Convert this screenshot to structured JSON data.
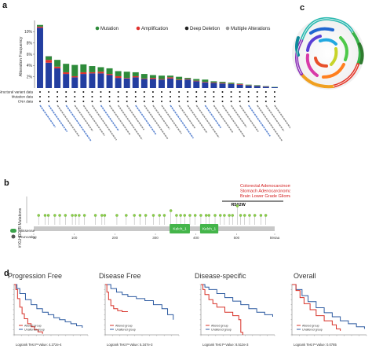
{
  "panels": {
    "a": "a",
    "b": "b",
    "c": "c",
    "d": "d"
  },
  "colors": {
    "mutation": "#2e8b3a",
    "amplification": "#e0332f",
    "deep_deletion": "#233ea0",
    "multiple": "#9a9a9a",
    "lollipop": "#8ccf4a",
    "domain": "#44b54a",
    "km_altered": "#d73027",
    "km_unaltered": "#2c5aa0",
    "label_red": "#d42020",
    "cancer_blue": "#3a6cc8"
  },
  "chart_data": [
    {
      "type": "bar",
      "panel": "a",
      "ylabel": "Alteration Frequency",
      "ylim": [
        0,
        12
      ],
      "yticks": [
        "2%",
        "4%",
        "6%",
        "8%",
        "10%"
      ],
      "legend": [
        "Mutation",
        "Amplification",
        "Deep Deletion",
        "Multiple Alterations"
      ],
      "row_labels": [
        "Structural variant data",
        "Mutation data",
        "CNA data"
      ],
      "series": [
        {
          "name": "Mutation",
          "values": [
            0.3,
            0.6,
            1.2,
            1.5,
            2.0,
            1.4,
            1.1,
            0.8,
            1.0,
            0.9,
            1.1,
            0.7,
            0.8,
            0.5,
            0.6,
            0.3,
            0.5,
            0.2,
            0.3,
            0.4,
            0.2,
            0.2,
            0.2,
            0.1,
            0.1,
            0.1,
            0.05,
            0.05
          ]
        },
        {
          "name": "Amplification",
          "values": [
            0.2,
            0.5,
            0.3,
            0.3,
            0.2,
            0.3,
            0.2,
            0.3,
            0.2,
            0.3,
            0.1,
            0.2,
            0.1,
            0.2,
            0.1,
            0.2,
            0.1,
            0.1,
            0.1,
            0.1,
            0.1,
            0.1,
            0.05,
            0.1,
            0.05,
            0.05,
            0.05,
            0.0
          ]
        },
        {
          "name": "Deep Deletion",
          "values": [
            10.7,
            4.5,
            3.5,
            2.5,
            1.9,
            2.5,
            2.6,
            2.6,
            2.3,
            1.8,
            1.7,
            1.9,
            1.6,
            1.6,
            1.5,
            1.7,
            1.4,
            1.5,
            1.2,
            1.0,
            0.9,
            0.8,
            0.7,
            0.6,
            0.45,
            0.35,
            0.25,
            0.15
          ]
        },
        {
          "name": "Multiple Alterations",
          "values": [
            0,
            0.1,
            0,
            0,
            0,
            0,
            0,
            0,
            0,
            0,
            0,
            0,
            0,
            0,
            0,
            0,
            0,
            0,
            0,
            0,
            0,
            0,
            0,
            0,
            0,
            0,
            0,
            0
          ]
        }
      ]
    },
    {
      "type": "scatter",
      "panel": "b",
      "ylabel": "# KLHDC7B Mutations",
      "xtick_labels": [
        "0",
        "100",
        "200",
        "300",
        "400",
        "500",
        "594aa"
      ],
      "xlim": [
        0,
        594
      ],
      "domains": [
        {
          "name": "Kelch_1",
          "start": 335,
          "end": 385
        },
        {
          "name": "Kelch_1",
          "start": 410,
          "end": 455
        }
      ],
      "legend": [
        "Missense",
        "Truncating"
      ],
      "annotation_lines": [
        "Colorectal Adenocarcinoma(n=1)",
        "Stomach Adenocarcinoma(n=1)",
        "Brain Lower Grade Glioma(n=1)"
      ],
      "hotspot_label": "R502W",
      "hotspot": 502,
      "mutation_positions": [
        12,
        28,
        36,
        52,
        64,
        78,
        95,
        103,
        112,
        125,
        152,
        168,
        175,
        205,
        228,
        248,
        262,
        276,
        295,
        310,
        322,
        338,
        352,
        362,
        372,
        385,
        398,
        412,
        425,
        432,
        447,
        460,
        470,
        482,
        490,
        502,
        510,
        520,
        532,
        545,
        560,
        572
      ],
      "mutation_heights": [
        1,
        1,
        1,
        1,
        1,
        1,
        1,
        1,
        1,
        1,
        1,
        1,
        1,
        1,
        1,
        1,
        1,
        1,
        1,
        1,
        1,
        2,
        1,
        1,
        1,
        1,
        1,
        1,
        1,
        1,
        1,
        1,
        1,
        1,
        1,
        3,
        1,
        1,
        1,
        1,
        1,
        1
      ]
    },
    {
      "type": "line",
      "panel": "d",
      "title": "Progression Free",
      "legend": [
        "Altered group",
        "Unaltered group"
      ],
      "logrank": "Logrank Test P-Value: 4.272e-4",
      "series": [
        {
          "name": "Altered group",
          "values": [
            [
              0,
              100
            ],
            [
              3,
              90
            ],
            [
              6,
              72
            ],
            [
              10,
              55
            ],
            [
              14,
              42
            ],
            [
              18,
              32
            ],
            [
              24,
              22
            ],
            [
              30,
              16
            ],
            [
              36,
              10
            ],
            [
              42,
              6
            ],
            [
              50,
              2
            ]
          ]
        },
        {
          "name": "Unaltered group",
          "values": [
            [
              0,
              100
            ],
            [
              5,
              92
            ],
            [
              10,
              82
            ],
            [
              20,
              70
            ],
            [
              30,
              60
            ],
            [
              40,
              52
            ],
            [
              50,
              45
            ],
            [
              60,
              40
            ],
            [
              70,
              34
            ],
            [
              80,
              30
            ],
            [
              90,
              26
            ],
            [
              100,
              22
            ],
            [
              110,
              18
            ],
            [
              120,
              14
            ]
          ]
        }
      ]
    },
    {
      "type": "line",
      "panel": "d",
      "title": "Disease Free",
      "legend": [
        "Altered group",
        "Unaltered group"
      ],
      "logrank": "Logrank Test P-Value: 5.347e-3",
      "series": [
        {
          "name": "Altered group",
          "values": [
            [
              0,
              100
            ],
            [
              3,
              85
            ],
            [
              6,
              70
            ],
            [
              10,
              58
            ],
            [
              15,
              52
            ],
            [
              22,
              48
            ],
            [
              30,
              46
            ],
            [
              40,
              46
            ]
          ]
        },
        {
          "name": "Unaltered group",
          "values": [
            [
              0,
              100
            ],
            [
              10,
              92
            ],
            [
              20,
              85
            ],
            [
              30,
              80
            ],
            [
              40,
              76
            ],
            [
              55,
              72
            ],
            [
              70,
              68
            ],
            [
              85,
              60
            ],
            [
              100,
              52
            ],
            [
              110,
              40
            ],
            [
              120,
              30
            ]
          ]
        }
      ]
    },
    {
      "type": "line",
      "panel": "d",
      "title": "Disease-specific",
      "legend": [
        "Altered group",
        "Unaltered group"
      ],
      "logrank": "Logrank Test P-Value: 8.513e-3",
      "series": [
        {
          "name": "Altered group",
          "values": [
            [
              0,
              100
            ],
            [
              5,
              90
            ],
            [
              10,
              80
            ],
            [
              20,
              70
            ],
            [
              30,
              62
            ],
            [
              40,
              55
            ],
            [
              60,
              45
            ],
            [
              80,
              38
            ],
            [
              95,
              30
            ],
            [
              100,
              5
            ],
            [
              105,
              0
            ]
          ]
        },
        {
          "name": "Unaltered group",
          "values": [
            [
              0,
              100
            ],
            [
              10,
              95
            ],
            [
              20,
              90
            ],
            [
              40,
              82
            ],
            [
              60,
              74
            ],
            [
              80,
              67
            ],
            [
              100,
              60
            ],
            [
              120,
              52
            ],
            [
              140,
              45
            ],
            [
              160,
              40
            ],
            [
              180,
              36
            ]
          ]
        }
      ]
    },
    {
      "type": "line",
      "panel": "d",
      "title": "Overall",
      "legend": [
        "Altered group",
        "Unaltered group"
      ],
      "logrank": "Logrank Test P-Value: 0.0785",
      "series": [
        {
          "name": "Altered group",
          "values": [
            [
              0,
              100
            ],
            [
              10,
              88
            ],
            [
              20,
              74
            ],
            [
              30,
              62
            ],
            [
              45,
              50
            ],
            [
              60,
              38
            ],
            [
              80,
              28
            ],
            [
              100,
              20
            ],
            [
              110,
              12
            ],
            [
              120,
              8
            ]
          ]
        },
        {
          "name": "Unaltered group",
          "values": [
            [
              0,
              100
            ],
            [
              10,
              90
            ],
            [
              25,
              78
            ],
            [
              40,
              66
            ],
            [
              60,
              54
            ],
            [
              80,
              44
            ],
            [
              100,
              36
            ],
            [
              120,
              28
            ],
            [
              140,
              22
            ],
            [
              160,
              16
            ],
            [
              180,
              12
            ]
          ]
        }
      ]
    }
  ]
}
